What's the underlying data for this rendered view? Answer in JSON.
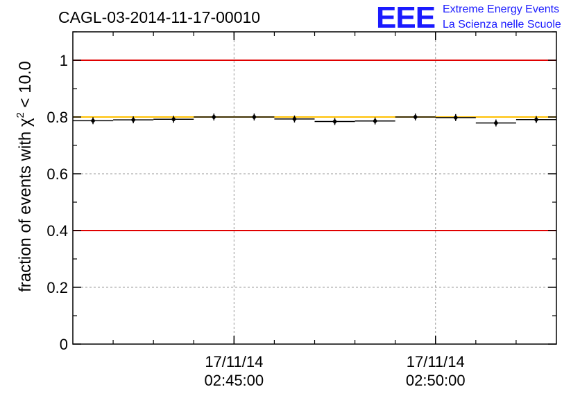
{
  "chart_data": {
    "type": "scatter",
    "title": "CAGL-03-2014-11-17-00010",
    "ylabel": "fraction of events with χ",
    "ylabel_sup": "2",
    "ylabel_suffix": " < 10.0",
    "xlabel": "",
    "ylim": [
      0,
      1.1
    ],
    "y_ticks": [
      0,
      0.2,
      0.4,
      0.6,
      0.8,
      1
    ],
    "y_tick_labels": [
      "0",
      "0.2",
      "0.4",
      "0.6",
      "0.8",
      "1"
    ],
    "x_ticks": [
      {
        "minutes": 2,
        "date": "17/11/14",
        "time": "02:45:00"
      },
      {
        "minutes": 7,
        "date": "17/11/14",
        "time": "02:50:00"
      }
    ],
    "x_range_minutes": [
      -2,
      10
    ],
    "x_minor_ticks_minutes": [
      -1,
      0,
      1,
      2,
      3,
      4,
      5,
      6,
      7,
      8,
      9
    ],
    "grid": true,
    "series": [
      {
        "points": [
          {
            "x": -1.5,
            "y": 0.787
          },
          {
            "x": -0.5,
            "y": 0.79
          },
          {
            "x": 0.5,
            "y": 0.792
          },
          {
            "x": 1.5,
            "y": 0.8
          },
          {
            "x": 2.5,
            "y": 0.8
          },
          {
            "x": 3.5,
            "y": 0.793
          },
          {
            "x": 4.5,
            "y": 0.784
          },
          {
            "x": 5.5,
            "y": 0.786
          },
          {
            "x": 6.5,
            "y": 0.8
          },
          {
            "x": 7.5,
            "y": 0.798
          },
          {
            "x": 8.5,
            "y": 0.779
          },
          {
            "x": 9.5,
            "y": 0.791
          }
        ],
        "bin_half_width": 0.5,
        "color": "#000000"
      }
    ],
    "reference_lines": [
      {
        "y": 1.0,
        "color": "#e00000"
      },
      {
        "y": 0.4,
        "color": "#e00000"
      },
      {
        "y": 0.8,
        "color": "#ffc000"
      }
    ]
  },
  "logo": {
    "mark": "EEE",
    "line1": "Extreme Energy Events",
    "line2": "La Scienza nelle Scuole",
    "color": "#1a1aff"
  }
}
